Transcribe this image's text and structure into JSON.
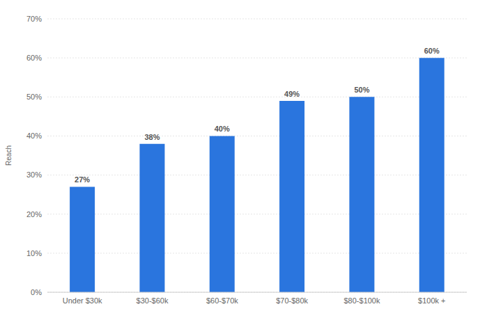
{
  "chart_data": {
    "type": "bar",
    "y_label": "Reach",
    "categories": [
      "Under $30k",
      "$30-$60k",
      "$60-$70k",
      "$70-$80k",
      "$80-$100k",
      "$100k +"
    ],
    "values": [
      27,
      38,
      40,
      49,
      50,
      60
    ],
    "value_labels": [
      "27%",
      "38%",
      "40%",
      "49%",
      "50%",
      "60%"
    ],
    "color": "#2a75de",
    "ylim": [
      0,
      70
    ],
    "yticks": [
      {
        "value": 0,
        "label": "0%"
      },
      {
        "value": 10,
        "label": "10%"
      },
      {
        "value": 20,
        "label": "20%"
      },
      {
        "value": 30,
        "label": "30%"
      },
      {
        "value": 40,
        "label": "40%"
      },
      {
        "value": 50,
        "label": "50%"
      },
      {
        "value": 60,
        "label": "60%"
      },
      {
        "value": 70,
        "label": "70%"
      }
    ],
    "grid": true,
    "data_labels": true
  }
}
